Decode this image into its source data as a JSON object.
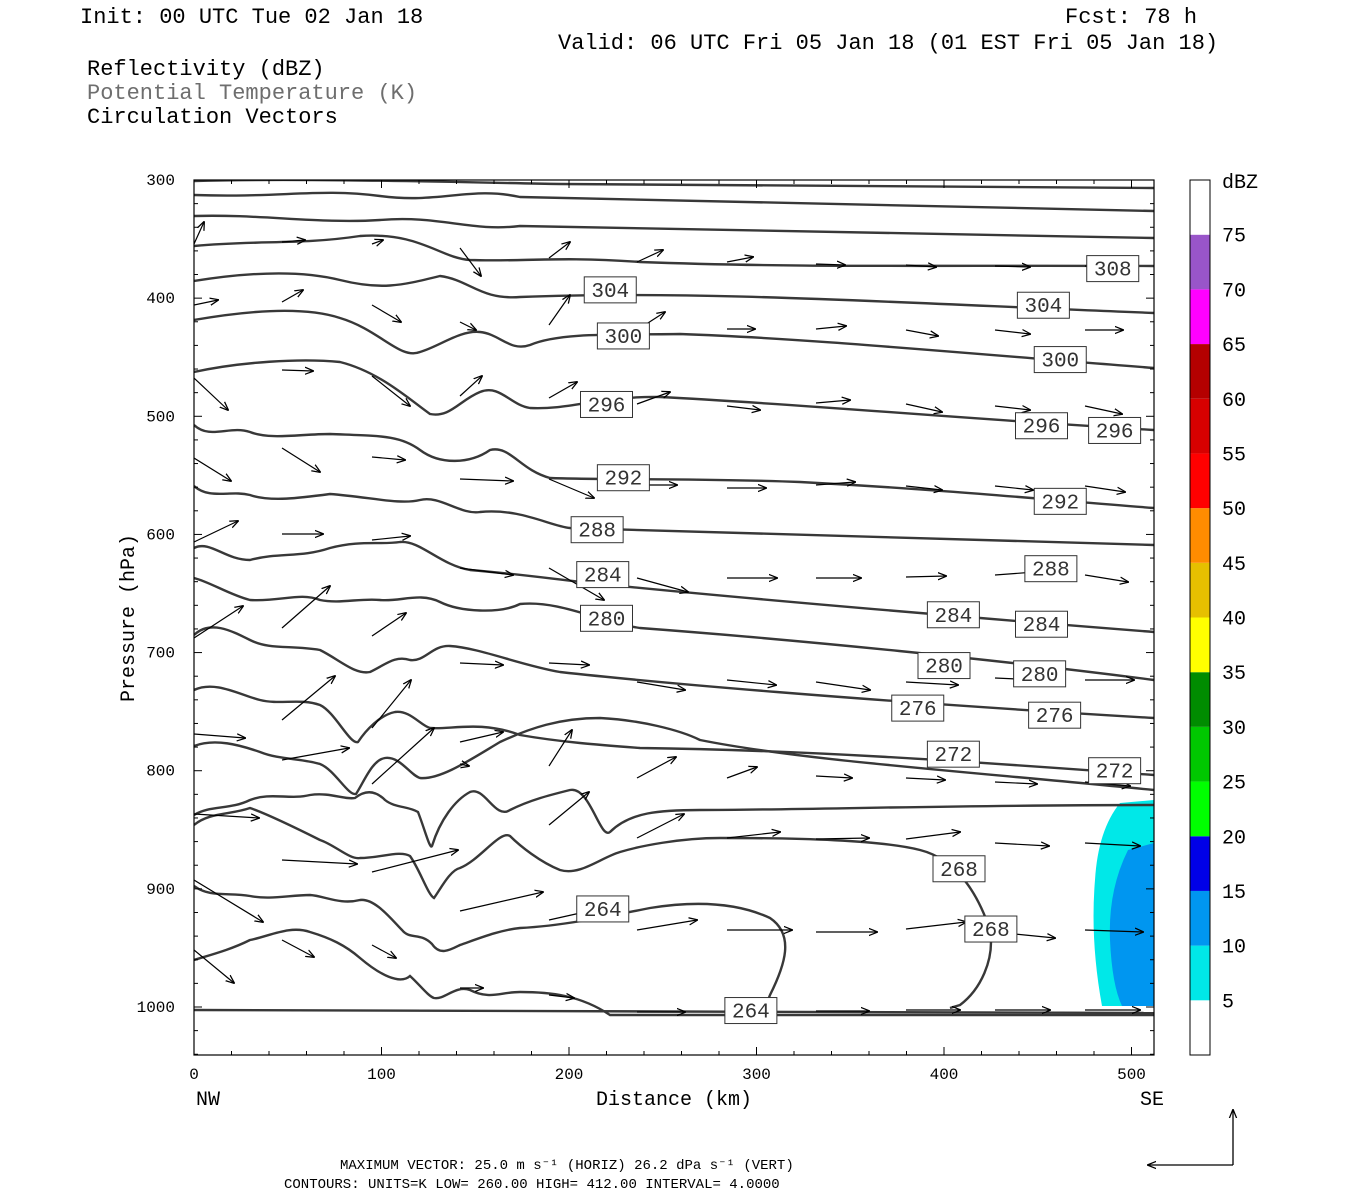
{
  "header": {
    "init": "Init: 00 UTC Tue 02 Jan 18",
    "fcst": "Fcst:   78 h",
    "valid": "Valid: 06 UTC Fri 05 Jan 18 (01 EST Fri 05 Jan 18)",
    "field1": "Reflectivity (dBZ)",
    "field2": "Potential Temperature (K)",
    "field3": "Circulation Vectors"
  },
  "footer": {
    "max_vector": "MAXIMUM VECTOR:  25.0 m s⁻¹ (HORIZ)        26.2 dPa s⁻¹ (VERT)",
    "contours": "CONTOURS:  UNITS=K  LOW=  260.00       HIGH=  412.00       INTERVAL=    4.0000"
  },
  "chart_data": {
    "type": "cross-section contour",
    "xlabel": "Distance (km)",
    "ylabel": "Pressure (hPa)",
    "x_endpoints": [
      "NW",
      "SE"
    ],
    "xlim": [
      0,
      512
    ],
    "ylim": [
      1040,
      300
    ],
    "x_ticks": [
      0,
      100,
      200,
      300,
      400,
      500
    ],
    "y_ticks": [
      300,
      400,
      500,
      600,
      700,
      800,
      900,
      1000
    ],
    "colorbar": {
      "unit": "dBZ",
      "levels": [
        5,
        10,
        15,
        20,
        25,
        30,
        35,
        40,
        45,
        50,
        55,
        60,
        65,
        70,
        75
      ],
      "colors": [
        "#ffffff",
        "#00e8e8",
        "#0096f0",
        "#0000e8",
        "#00ff00",
        "#00c800",
        "#008c00",
        "#ffff00",
        "#e6c000",
        "#ff8c00",
        "#ff0000",
        "#d70000",
        "#b40000",
        "#ff00ff",
        "#9955c9",
        "#ffffff"
      ]
    },
    "theta_labels": [
      {
        "value": "308",
        "x": 490,
        "p": 375
      },
      {
        "value": "304",
        "x": 222,
        "p": 393
      },
      {
        "value": "304",
        "x": 453,
        "p": 406
      },
      {
        "value": "300",
        "x": 229,
        "p": 432
      },
      {
        "value": "300",
        "x": 462,
        "p": 452
      },
      {
        "value": "296",
        "x": 220,
        "p": 490
      },
      {
        "value": "296",
        "x": 452,
        "p": 508
      },
      {
        "value": "296",
        "x": 491,
        "p": 512
      },
      {
        "value": "292",
        "x": 229,
        "p": 552
      },
      {
        "value": "292",
        "x": 462,
        "p": 572
      },
      {
        "value": "288",
        "x": 215,
        "p": 596
      },
      {
        "value": "288",
        "x": 457,
        "p": 629
      },
      {
        "value": "284",
        "x": 218,
        "p": 634
      },
      {
        "value": "284",
        "x": 405,
        "p": 668
      },
      {
        "value": "284",
        "x": 452,
        "p": 676
      },
      {
        "value": "280",
        "x": 220,
        "p": 671
      },
      {
        "value": "280",
        "x": 400,
        "p": 711
      },
      {
        "value": "280",
        "x": 451,
        "p": 718
      },
      {
        "value": "276",
        "x": 386,
        "p": 747
      },
      {
        "value": "276",
        "x": 459,
        "p": 753
      },
      {
        "value": "272",
        "x": 405,
        "p": 786
      },
      {
        "value": "272",
        "x": 491,
        "p": 800
      },
      {
        "value": "268",
        "x": 408,
        "p": 883
      },
      {
        "value": "268",
        "x": 425,
        "p": 934
      },
      {
        "value": "264",
        "x": 218,
        "p": 917
      },
      {
        "value": "264",
        "x": 297,
        "p": 1003
      }
    ]
  }
}
